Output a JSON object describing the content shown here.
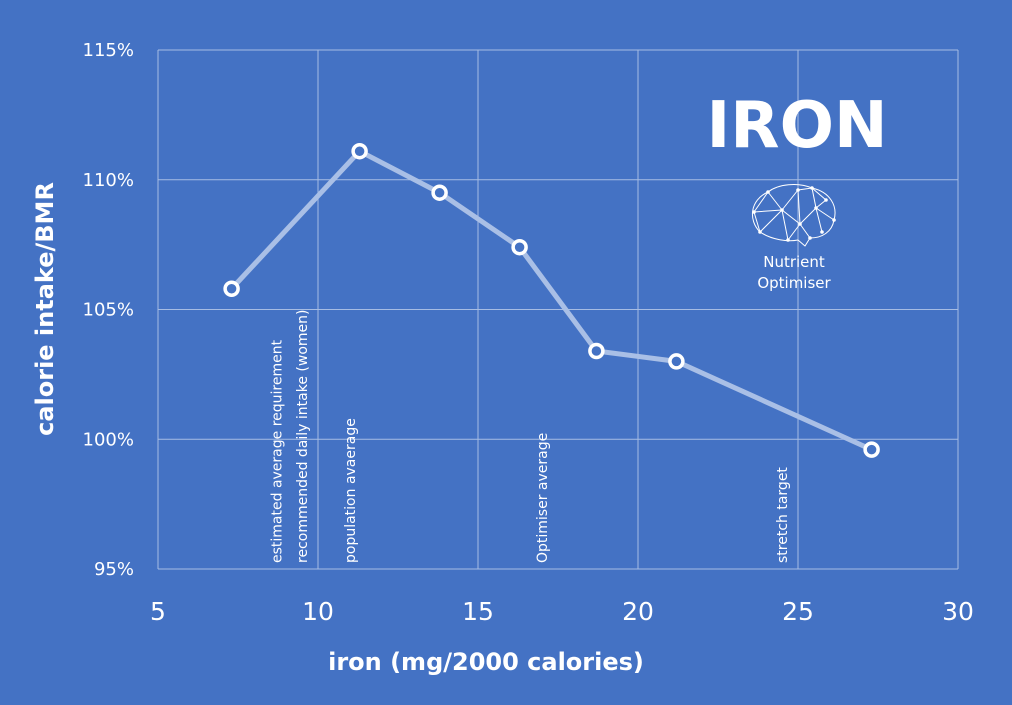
{
  "chart_data": {
    "type": "line",
    "title": "IRON",
    "xlabel": "iron (mg/2000 calories)",
    "ylabel": "calorie intake/BMR",
    "xlim": [
      5,
      30
    ],
    "ylim": [
      95,
      115
    ],
    "x_ticks": [
      5,
      10,
      15,
      20,
      25,
      30
    ],
    "y_ticks": [
      95,
      100,
      105,
      110,
      115
    ],
    "y_tick_suffix": "%",
    "grid": true,
    "series": [
      {
        "x": [
          7.3,
          11.3,
          13.8,
          16.3,
          18.7,
          21.2,
          27.3
        ],
        "y": [
          105.8,
          111.1,
          109.5,
          107.4,
          103.4,
          103.0,
          99.6
        ]
      }
    ],
    "annotations": [
      {
        "x": 8.7,
        "text": "estimated average requirement"
      },
      {
        "x": 9.5,
        "text": "recommended daily intake (women)"
      },
      {
        "x": 11.0,
        "text": "population avaerage"
      },
      {
        "x": 17.0,
        "text": "Optimiser average"
      },
      {
        "x": 24.5,
        "text": "stretch target"
      }
    ],
    "colors": {
      "background": "#4472c4",
      "grid": "#a6bce3",
      "line": "#a9bfe6",
      "marker_stroke": "#ffffff",
      "marker_fill": "#4472c4",
      "text": "#ffffff"
    }
  },
  "logo": {
    "icon": "brain-network-icon",
    "line1": "Nutrient",
    "line2": "Optimiser"
  }
}
